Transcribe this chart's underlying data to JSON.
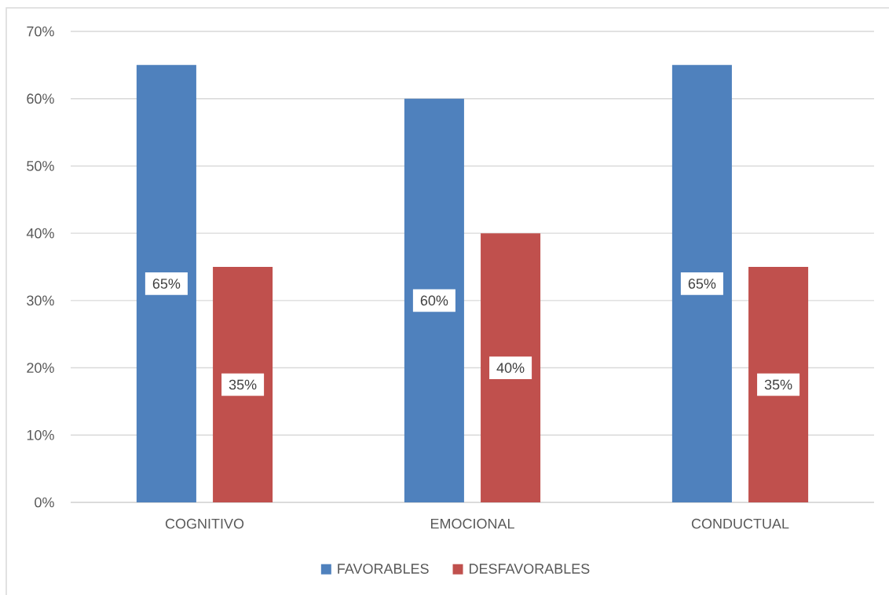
{
  "chart_data": {
    "type": "bar",
    "categories": [
      "COGNITIVO",
      "EMOCIONAL",
      "CONDUCTUAL"
    ],
    "series": [
      {
        "name": "FAVORABLES",
        "color": "#4f81bd",
        "values": [
          65,
          60,
          65
        ],
        "value_labels": [
          "65%",
          "60%",
          "65%"
        ]
      },
      {
        "name": "DESFAVORABLES",
        "color": "#c0504d",
        "values": [
          35,
          40,
          35
        ],
        "value_labels": [
          "35%",
          "40%",
          "35%"
        ]
      }
    ],
    "ylim": [
      0,
      70
    ],
    "yticks": [
      {
        "value": 0,
        "label": "0%"
      },
      {
        "value": 10,
        "label": "10%"
      },
      {
        "value": 20,
        "label": "20%"
      },
      {
        "value": 30,
        "label": "30%"
      },
      {
        "value": 40,
        "label": "40%"
      },
      {
        "value": 50,
        "label": "50%"
      },
      {
        "value": 60,
        "label": "60%"
      },
      {
        "value": 70,
        "label": "70%"
      }
    ],
    "grid": "y",
    "legend": "bottom"
  }
}
